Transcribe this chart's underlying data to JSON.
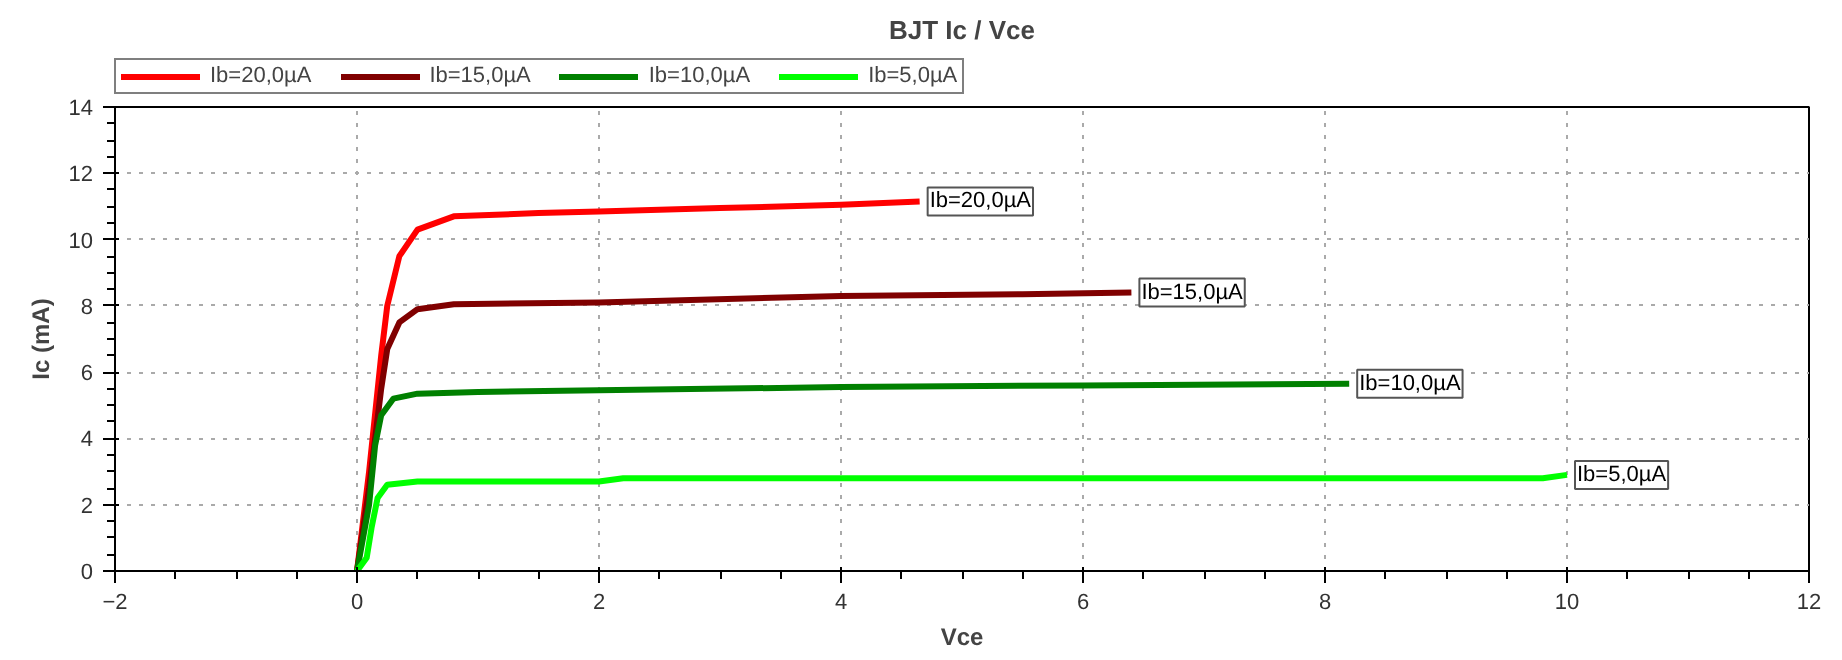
{
  "chart_data": {
    "type": "line",
    "title": "BJT Ic / Vce",
    "xlabel": "Vce",
    "ylabel": "Ic (mA)",
    "xlim": [
      -2,
      12
    ],
    "xticks": [
      -2,
      0,
      2,
      4,
      6,
      8,
      10,
      12
    ],
    "ylim": [
      0,
      14
    ],
    "yticks": [
      0,
      2,
      4,
      6,
      8,
      10,
      12,
      14
    ],
    "grid": true,
    "legend": "top",
    "line_style": "solid",
    "series": [
      {
        "name": "Ib=20,0µA",
        "color": "#ff0000",
        "x": [
          0,
          0.1,
          0.2,
          0.25,
          0.35,
          0.5,
          0.8,
          1.5,
          2,
          3,
          4,
          4.65
        ],
        "values": [
          0,
          3,
          6.5,
          8,
          9.5,
          10.3,
          10.7,
          10.8,
          10.85,
          10.95,
          11.05,
          11.15
        ]
      },
      {
        "name": "Ib=15,0µA",
        "color": "#800000",
        "x": [
          0,
          0.1,
          0.2,
          0.25,
          0.35,
          0.5,
          0.8,
          2,
          4,
          5.5,
          6.4
        ],
        "values": [
          0,
          2.5,
          5.5,
          6.7,
          7.5,
          7.9,
          8.05,
          8.1,
          8.3,
          8.35,
          8.4
        ]
      },
      {
        "name": "Ib=10,0µA",
        "color": "#008000",
        "x": [
          0,
          0.1,
          0.15,
          0.2,
          0.3,
          0.5,
          1,
          2,
          4,
          6,
          8.2
        ],
        "values": [
          0,
          2,
          3.8,
          4.7,
          5.2,
          5.35,
          5.4,
          5.45,
          5.55,
          5.6,
          5.65
        ]
      },
      {
        "name": "Ib=5,0µA",
        "color": "#00ff00",
        "x": [
          0,
          0.08,
          0.12,
          0.17,
          0.25,
          0.5,
          2,
          2.2,
          6,
          9.8,
          10
        ],
        "values": [
          0,
          0.4,
          1.3,
          2.2,
          2.6,
          2.7,
          2.7,
          2.8,
          2.8,
          2.8,
          2.9
        ]
      }
    ],
    "annotations": [
      {
        "text": "Ib=20,0µA",
        "x": 4.65,
        "y": 11.15
      },
      {
        "text": "Ib=15,0µA",
        "x": 6.4,
        "y": 8.4
      },
      {
        "text": "Ib=10,0µA",
        "x": 8.2,
        "y": 5.65
      },
      {
        "text": "Ib=5,0µA",
        "x": 10,
        "y": 2.9
      }
    ]
  }
}
